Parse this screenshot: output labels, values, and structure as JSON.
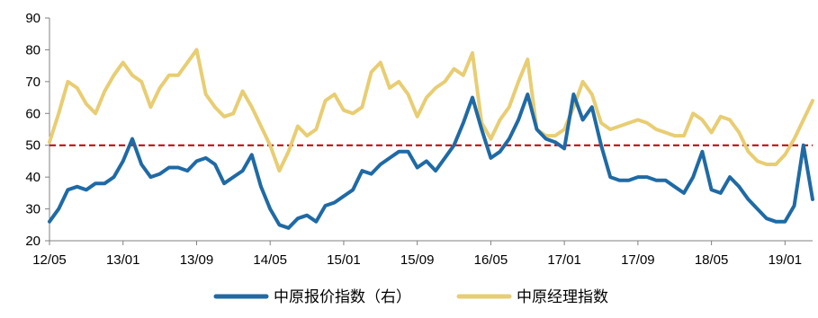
{
  "chart_data": {
    "type": "line",
    "title": "",
    "xlabel": "",
    "ylabel": "",
    "ylim": [
      20,
      90
    ],
    "yticks": [
      20,
      30,
      40,
      50,
      60,
      70,
      80,
      90
    ],
    "x_start": "2012-05",
    "x_end": "2019-04",
    "xtick_labels": [
      "12/05",
      "13/01",
      "13/09",
      "14/05",
      "15/01",
      "15/09",
      "16/05",
      "17/01",
      "17/09",
      "18/05",
      "19/01"
    ],
    "reference_line": {
      "value": 50,
      "color": "#C00000",
      "style": "dashed"
    },
    "grid": false,
    "legend_position": "bottom",
    "colors": {
      "price_index": "#1F6AA5",
      "manager_index": "#E8CD72",
      "axis": "#808080"
    },
    "series": [
      {
        "name": "中原报价指数（右）",
        "color": "#1F6AA5",
        "x": [
          "2012-05",
          "2012-06",
          "2012-07",
          "2012-08",
          "2012-09",
          "2012-10",
          "2012-11",
          "2012-12",
          "2013-01",
          "2013-02",
          "2013-03",
          "2013-04",
          "2013-05",
          "2013-06",
          "2013-07",
          "2013-08",
          "2013-09",
          "2013-10",
          "2013-11",
          "2013-12",
          "2014-01",
          "2014-02",
          "2014-03",
          "2014-04",
          "2014-05",
          "2014-06",
          "2014-07",
          "2014-08",
          "2014-09",
          "2014-10",
          "2014-11",
          "2014-12",
          "2015-01",
          "2015-02",
          "2015-03",
          "2015-04",
          "2015-05",
          "2015-06",
          "2015-07",
          "2015-08",
          "2015-09",
          "2015-10",
          "2015-11",
          "2015-12",
          "2016-01",
          "2016-02",
          "2016-03",
          "2016-04",
          "2016-05",
          "2016-06",
          "2016-07",
          "2016-08",
          "2016-09",
          "2016-10",
          "2016-11",
          "2016-12",
          "2017-01",
          "2017-02",
          "2017-03",
          "2017-04",
          "2017-05",
          "2017-06",
          "2017-07",
          "2017-08",
          "2017-09",
          "2017-10",
          "2017-11",
          "2017-12",
          "2018-01",
          "2018-02",
          "2018-03",
          "2018-04",
          "2018-05",
          "2018-06",
          "2018-07",
          "2018-08",
          "2018-09",
          "2018-10",
          "2018-11",
          "2018-12",
          "2019-01",
          "2019-02",
          "2019-03",
          "2019-04"
        ],
        "values": [
          26,
          30,
          36,
          37,
          36,
          38,
          38,
          40,
          45,
          52,
          44,
          40,
          41,
          43,
          43,
          42,
          45,
          46,
          44,
          38,
          40,
          42,
          47,
          37,
          30,
          25,
          24,
          27,
          28,
          26,
          31,
          32,
          34,
          36,
          42,
          41,
          44,
          46,
          48,
          48,
          43,
          45,
          42,
          46,
          50,
          57,
          65,
          55,
          46,
          48,
          52,
          58,
          66,
          55,
          52,
          51,
          49,
          66,
          58,
          62,
          50,
          40,
          39,
          39,
          40,
          40,
          39,
          39,
          37,
          35,
          40,
          48,
          36,
          35,
          40,
          37,
          33,
          30,
          27,
          26,
          26,
          31,
          50,
          33
        ]
      },
      {
        "name": "中原经理指数",
        "color": "#E8CD72",
        "x": [
          "2012-05",
          "2012-06",
          "2012-07",
          "2012-08",
          "2012-09",
          "2012-10",
          "2012-11",
          "2012-12",
          "2013-01",
          "2013-02",
          "2013-03",
          "2013-04",
          "2013-05",
          "2013-06",
          "2013-07",
          "2013-08",
          "2013-09",
          "2013-10",
          "2013-11",
          "2013-12",
          "2014-01",
          "2014-02",
          "2014-03",
          "2014-04",
          "2014-05",
          "2014-06",
          "2014-07",
          "2014-08",
          "2014-09",
          "2014-10",
          "2014-11",
          "2014-12",
          "2015-01",
          "2015-02",
          "2015-03",
          "2015-04",
          "2015-05",
          "2015-06",
          "2015-07",
          "2015-08",
          "2015-09",
          "2015-10",
          "2015-11",
          "2015-12",
          "2016-01",
          "2016-02",
          "2016-03",
          "2016-04",
          "2016-05",
          "2016-06",
          "2016-07",
          "2016-08",
          "2016-09",
          "2016-10",
          "2016-11",
          "2016-12",
          "2017-01",
          "2017-02",
          "2017-03",
          "2017-04",
          "2017-05",
          "2017-06",
          "2017-07",
          "2017-08",
          "2017-09",
          "2017-10",
          "2017-11",
          "2017-12",
          "2018-01",
          "2018-02",
          "2018-03",
          "2018-04",
          "2018-05",
          "2018-06",
          "2018-07",
          "2018-08",
          "2018-09",
          "2018-10",
          "2018-11",
          "2018-12",
          "2019-01",
          "2019-02",
          "2019-03",
          "2019-04"
        ],
        "values": [
          51,
          60,
          70,
          68,
          63,
          60,
          67,
          72,
          76,
          72,
          70,
          62,
          68,
          72,
          72,
          76,
          80,
          66,
          62,
          59,
          60,
          67,
          62,
          56,
          50,
          42,
          48,
          56,
          53,
          55,
          64,
          66,
          61,
          60,
          62,
          73,
          76,
          68,
          70,
          66,
          59,
          65,
          68,
          70,
          74,
          72,
          79,
          57,
          52,
          58,
          62,
          70,
          77,
          55,
          53,
          53,
          55,
          62,
          70,
          66,
          57,
          55,
          56,
          57,
          58,
          57,
          55,
          54,
          53,
          53,
          60,
          58,
          54,
          59,
          58,
          54,
          48,
          45,
          44,
          44,
          47,
          52,
          58,
          64
        ]
      }
    ]
  }
}
